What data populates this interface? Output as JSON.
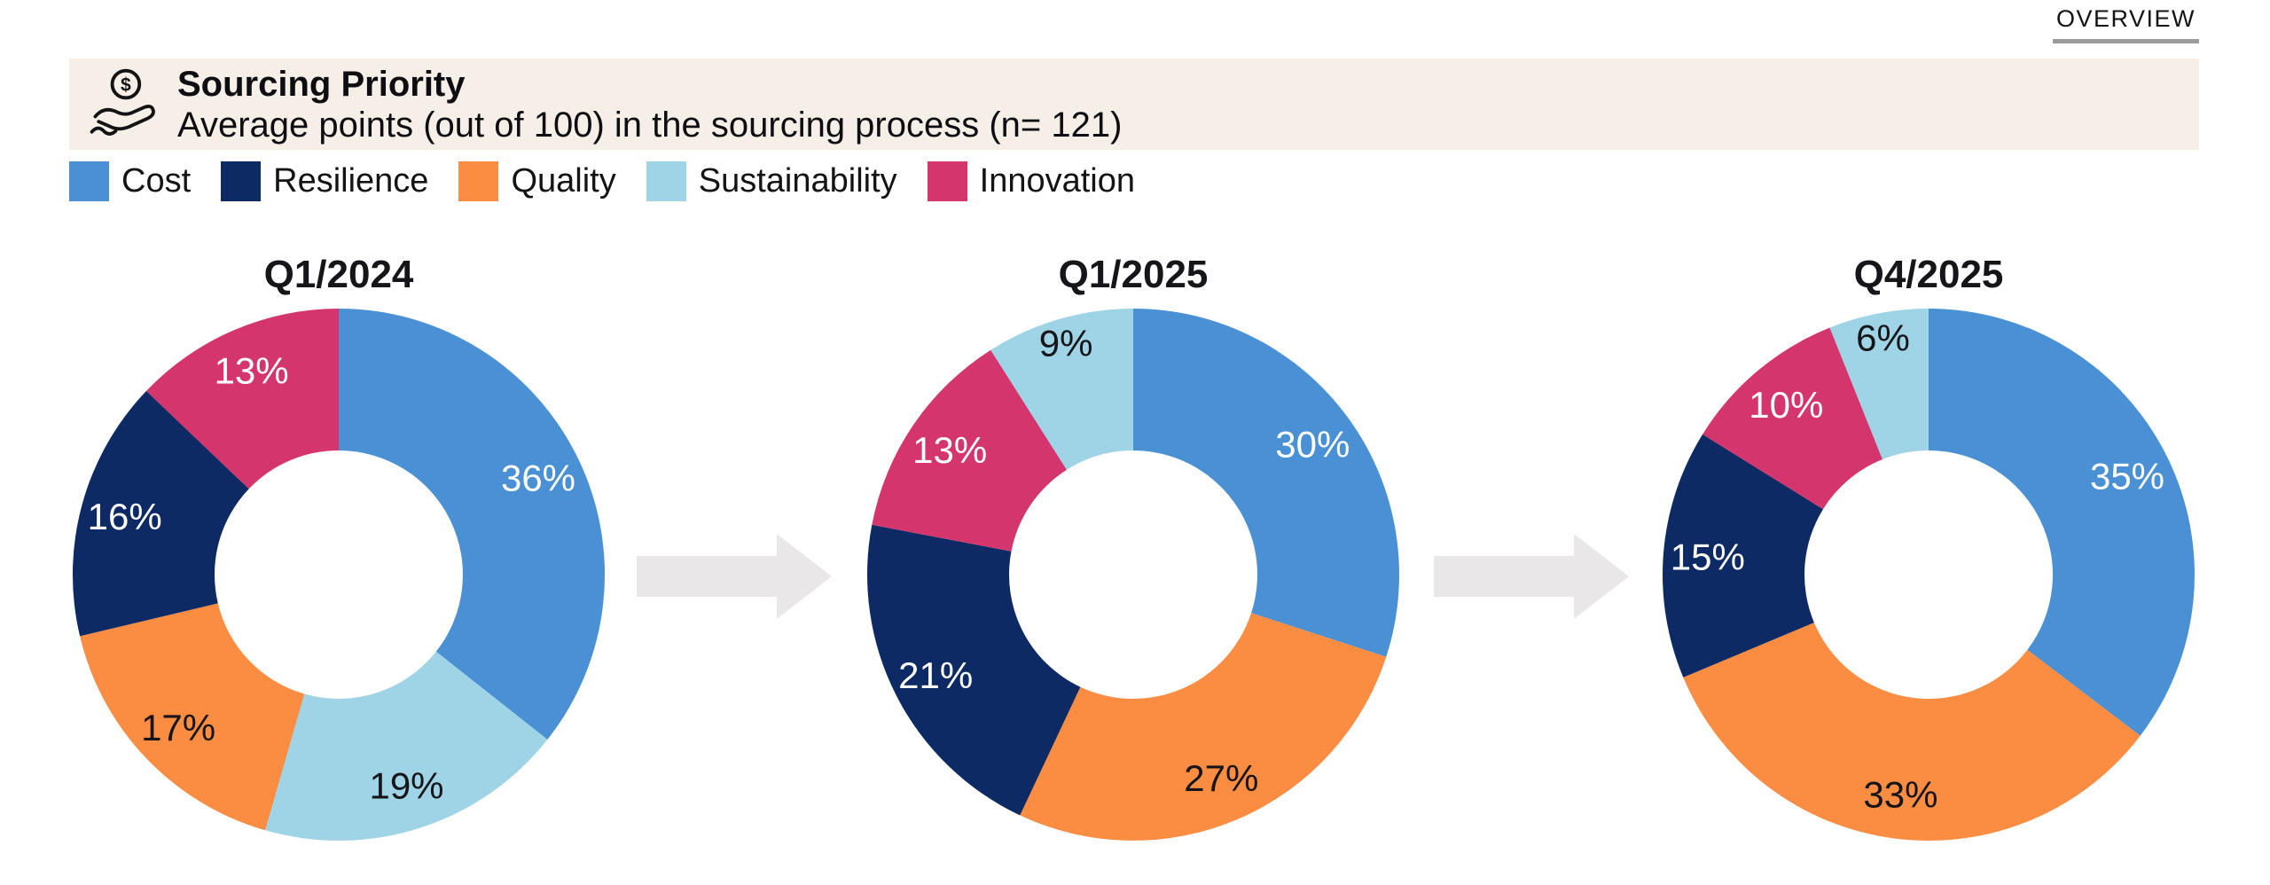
{
  "overview": {
    "label": "OVERVIEW"
  },
  "header": {
    "icon": "hand-coin-icon",
    "title": "Sourcing Priority",
    "subtitle": "Average points (out of 100) in the sourcing process (n= 121)"
  },
  "legend": [
    {
      "label": "Cost",
      "color": "#4A90D5"
    },
    {
      "label": "Resilience",
      "color": "#0E2A64"
    },
    {
      "label": "Quality",
      "color": "#FB8D42"
    },
    {
      "label": "Sustainability",
      "color": "#9FD4E6"
    },
    {
      "label": "Innovation",
      "color": "#D4356D"
    }
  ],
  "styles": {
    "band_bg": "#F5EFE7",
    "arrow_color": "#E9E7E8",
    "label_light": "#FFFFFF",
    "label_dark": "#15151A",
    "underline_gray": "#9B9B9B"
  },
  "chart_data": {
    "type": "pie",
    "variant": "donut",
    "title": "Sourcing Priority",
    "subtitle": "Average points (out of 100) in the sourcing process (n= 121)",
    "sample_size_text": "n= 121",
    "value_suffix": "%",
    "legend_position": "top-left",
    "categories": [
      "Cost",
      "Resilience",
      "Quality",
      "Sustainability",
      "Innovation"
    ],
    "category_colors": {
      "Cost": "#4A90D5",
      "Resilience": "#0E2A64",
      "Quality": "#FB8D42",
      "Sustainability": "#9FD4E6",
      "Innovation": "#D4356D"
    },
    "label_text_colors": {
      "Cost": "#FFFFFF",
      "Resilience": "#FFFFFF",
      "Quality": "#15151A",
      "Sustainability": "#15151A",
      "Innovation": "#FFFFFF"
    },
    "charts": [
      {
        "title": "Q1/2024",
        "slices": [
          {
            "label": "Cost",
            "value": 36
          },
          {
            "label": "Sustainability",
            "value": 19
          },
          {
            "label": "Quality",
            "value": 17
          },
          {
            "label": "Resilience",
            "value": 16
          },
          {
            "label": "Innovation",
            "value": 13
          }
        ]
      },
      {
        "title": "Q1/2025",
        "slices": [
          {
            "label": "Cost",
            "value": 30
          },
          {
            "label": "Quality",
            "value": 27
          },
          {
            "label": "Resilience",
            "value": 21
          },
          {
            "label": "Innovation",
            "value": 13
          },
          {
            "label": "Sustainability",
            "value": 9
          }
        ]
      },
      {
        "title": "Q4/2025",
        "slices": [
          {
            "label": "Cost",
            "value": 35
          },
          {
            "label": "Quality",
            "value": 33
          },
          {
            "label": "Resilience",
            "value": 15
          },
          {
            "label": "Innovation",
            "value": 10
          },
          {
            "label": "Sustainability",
            "value": 6
          }
        ]
      }
    ],
    "start_angle": "12-oclock",
    "direction": "clockwise"
  }
}
